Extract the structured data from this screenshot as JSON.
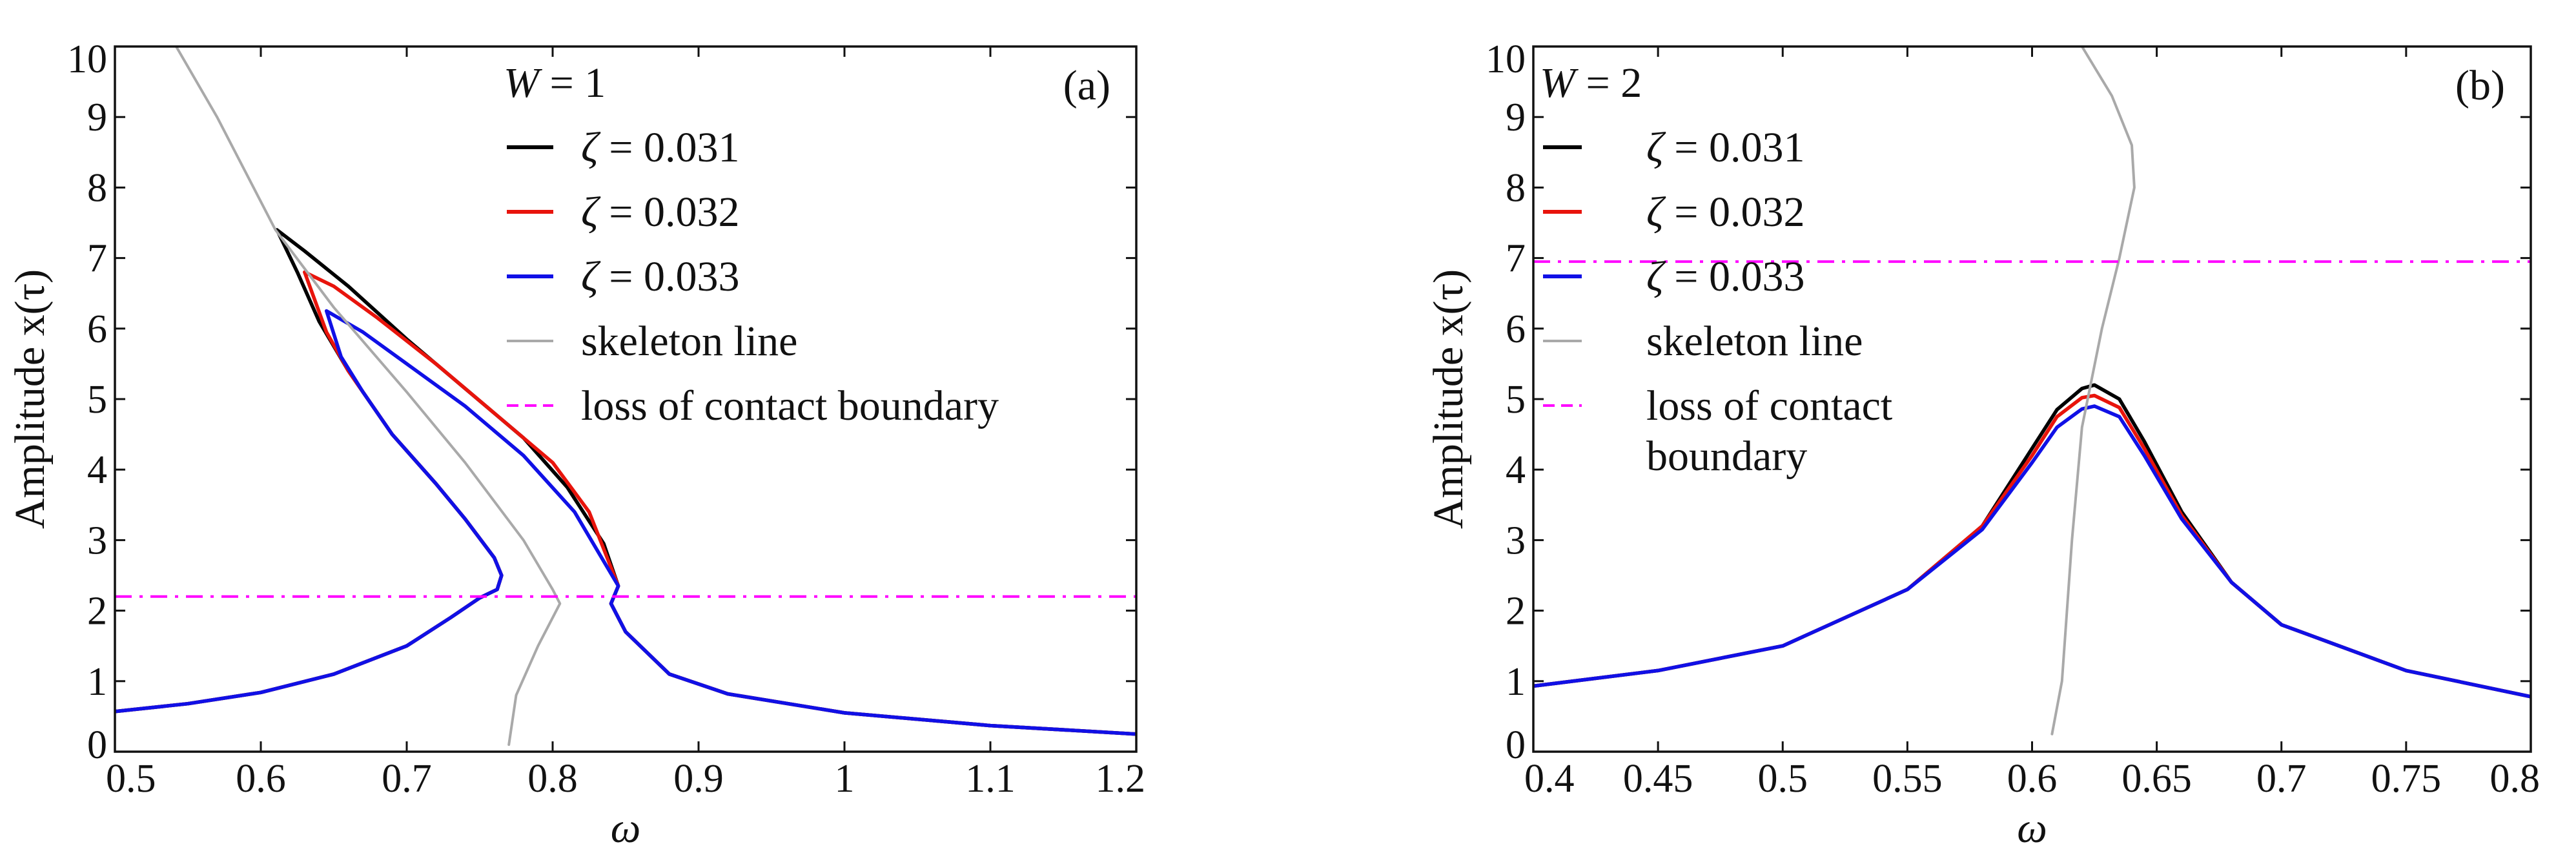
{
  "chart_data": [
    {
      "type": "line",
      "panel_label": "(a)",
      "xlabel": "ω",
      "ylabel": "Amplitude x(τ)",
      "xlim": [
        0.5,
        1.2
      ],
      "ylim": [
        0,
        10
      ],
      "x_ticks": [
        0.5,
        0.6,
        0.7,
        0.8,
        0.9,
        1,
        1.1,
        1.2
      ],
      "y_ticks": [
        0,
        1,
        2,
        3,
        4,
        5,
        6,
        7,
        8,
        9,
        10
      ],
      "legend_title": "W = 1",
      "legend_position": "top-right",
      "series": [
        {
          "name": "ζ = 0.031",
          "color": "#000000",
          "style": "solid",
          "points": [
            [
              0.5,
              0.57
            ],
            [
              0.55,
              0.68
            ],
            [
              0.6,
              0.84
            ],
            [
              0.65,
              1.1
            ],
            [
              0.7,
              1.5
            ],
            [
              0.73,
              1.9
            ],
            [
              0.75,
              2.18
            ],
            [
              0.762,
              2.3
            ],
            [
              0.765,
              2.5
            ],
            [
              0.76,
              2.75
            ],
            [
              0.74,
              3.3
            ],
            [
              0.72,
              3.8
            ],
            [
              0.69,
              4.5
            ],
            [
              0.66,
              5.4
            ],
            [
              0.64,
              6.1
            ],
            [
              0.625,
              6.8
            ],
            [
              0.611,
              7.4
            ],
            [
              0.63,
              7.1
            ],
            [
              0.66,
              6.6
            ],
            [
              0.7,
              5.85
            ],
            [
              0.74,
              5.15
            ],
            [
              0.78,
              4.45
            ],
            [
              0.81,
              3.75
            ],
            [
              0.835,
              2.95
            ],
            [
              0.845,
              2.35
            ],
            [
              0.84,
              2.1
            ],
            [
              0.85,
              1.7
            ],
            [
              0.88,
              1.1
            ],
            [
              0.92,
              0.82
            ],
            [
              1.0,
              0.55
            ],
            [
              1.1,
              0.37
            ],
            [
              1.2,
              0.25
            ]
          ]
        },
        {
          "name": "ζ = 0.032",
          "color": "#e8140c",
          "style": "solid",
          "points": [
            [
              0.5,
              0.57
            ],
            [
              0.55,
              0.68
            ],
            [
              0.6,
              0.84
            ],
            [
              0.65,
              1.1
            ],
            [
              0.7,
              1.5
            ],
            [
              0.73,
              1.9
            ],
            [
              0.75,
              2.18
            ],
            [
              0.762,
              2.3
            ],
            [
              0.765,
              2.5
            ],
            [
              0.76,
              2.75
            ],
            [
              0.74,
              3.3
            ],
            [
              0.72,
              3.8
            ],
            [
              0.69,
              4.5
            ],
            [
              0.66,
              5.4
            ],
            [
              0.645,
              5.95
            ],
            [
              0.63,
              6.8
            ],
            [
              0.65,
              6.6
            ],
            [
              0.68,
              6.15
            ],
            [
              0.72,
              5.5
            ],
            [
              0.76,
              4.8
            ],
            [
              0.8,
              4.1
            ],
            [
              0.825,
              3.4
            ],
            [
              0.845,
              2.35
            ],
            [
              0.84,
              2.1
            ],
            [
              0.85,
              1.7
            ],
            [
              0.88,
              1.1
            ],
            [
              0.92,
              0.82
            ],
            [
              1.0,
              0.55
            ],
            [
              1.1,
              0.37
            ],
            [
              1.2,
              0.25
            ]
          ]
        },
        {
          "name": "ζ = 0.033",
          "color": "#1010e6",
          "style": "solid",
          "points": [
            [
              0.5,
              0.57
            ],
            [
              0.55,
              0.68
            ],
            [
              0.6,
              0.84
            ],
            [
              0.65,
              1.1
            ],
            [
              0.7,
              1.5
            ],
            [
              0.73,
              1.9
            ],
            [
              0.75,
              2.18
            ],
            [
              0.762,
              2.3
            ],
            [
              0.765,
              2.5
            ],
            [
              0.76,
              2.75
            ],
            [
              0.74,
              3.3
            ],
            [
              0.72,
              3.8
            ],
            [
              0.69,
              4.5
            ],
            [
              0.67,
              5.1
            ],
            [
              0.655,
              5.6
            ],
            [
              0.645,
              6.25
            ],
            [
              0.67,
              5.95
            ],
            [
              0.7,
              5.5
            ],
            [
              0.74,
              4.9
            ],
            [
              0.78,
              4.2
            ],
            [
              0.815,
              3.4
            ],
            [
              0.845,
              2.35
            ],
            [
              0.84,
              2.1
            ],
            [
              0.85,
              1.7
            ],
            [
              0.88,
              1.1
            ],
            [
              0.92,
              0.82
            ],
            [
              1.0,
              0.55
            ],
            [
              1.1,
              0.37
            ],
            [
              1.2,
              0.25
            ]
          ]
        },
        {
          "name": "skeleton line",
          "color": "#a9a9a9",
          "style": "solid",
          "points": [
            [
              0.542,
              10
            ],
            [
              0.57,
              9.0
            ],
            [
              0.61,
              7.4
            ],
            [
              0.65,
              6.3
            ],
            [
              0.7,
              5.1
            ],
            [
              0.74,
              4.1
            ],
            [
              0.78,
              3.0
            ],
            [
              0.8,
              2.3
            ],
            [
              0.805,
              2.1
            ],
            [
              0.79,
              1.5
            ],
            [
              0.775,
              0.8
            ],
            [
              0.77,
              0.1
            ]
          ]
        },
        {
          "name": "loss of contact boundary",
          "color": "#ff00ff",
          "style": "dashdot",
          "points": [
            [
              0.5,
              2.2
            ],
            [
              1.2,
              2.2
            ]
          ]
        }
      ]
    },
    {
      "type": "line",
      "panel_label": "(b)",
      "xlabel": "ω",
      "ylabel": "Amplitude x(τ)",
      "xlim": [
        0.4,
        0.8
      ],
      "ylim": [
        0,
        10
      ],
      "x_ticks": [
        0.4,
        0.45,
        0.5,
        0.55,
        0.6,
        0.65,
        0.7,
        0.75,
        0.8
      ],
      "y_ticks": [
        0,
        1,
        2,
        3,
        4,
        5,
        6,
        7,
        8,
        9,
        10
      ],
      "legend_title": "W = 2",
      "legend_position": "top-left",
      "series": [
        {
          "name": "ζ = 0.031",
          "color": "#000000",
          "style": "solid",
          "points": [
            [
              0.4,
              0.93
            ],
            [
              0.45,
              1.15
            ],
            [
              0.5,
              1.5
            ],
            [
              0.55,
              2.3
            ],
            [
              0.58,
              3.2
            ],
            [
              0.6,
              4.3
            ],
            [
              0.61,
              4.85
            ],
            [
              0.62,
              5.15
            ],
            [
              0.625,
              5.2
            ],
            [
              0.635,
              5.0
            ],
            [
              0.645,
              4.4
            ],
            [
              0.66,
              3.4
            ],
            [
              0.68,
              2.4
            ],
            [
              0.7,
              1.8
            ],
            [
              0.75,
              1.15
            ],
            [
              0.8,
              0.78
            ]
          ]
        },
        {
          "name": "ζ = 0.032",
          "color": "#e8140c",
          "style": "solid",
          "points": [
            [
              0.4,
              0.93
            ],
            [
              0.45,
              1.15
            ],
            [
              0.5,
              1.5
            ],
            [
              0.55,
              2.3
            ],
            [
              0.58,
              3.2
            ],
            [
              0.6,
              4.2
            ],
            [
              0.61,
              4.75
            ],
            [
              0.62,
              5.02
            ],
            [
              0.625,
              5.05
            ],
            [
              0.635,
              4.88
            ],
            [
              0.645,
              4.3
            ],
            [
              0.66,
              3.35
            ],
            [
              0.68,
              2.4
            ],
            [
              0.7,
              1.8
            ],
            [
              0.75,
              1.15
            ],
            [
              0.8,
              0.78
            ]
          ]
        },
        {
          "name": "ζ = 0.033",
          "color": "#1010e6",
          "style": "solid",
          "points": [
            [
              0.4,
              0.93
            ],
            [
              0.45,
              1.15
            ],
            [
              0.5,
              1.5
            ],
            [
              0.55,
              2.3
            ],
            [
              0.58,
              3.15
            ],
            [
              0.6,
              4.1
            ],
            [
              0.61,
              4.6
            ],
            [
              0.62,
              4.86
            ],
            [
              0.625,
              4.9
            ],
            [
              0.635,
              4.75
            ],
            [
              0.645,
              4.2
            ],
            [
              0.66,
              3.3
            ],
            [
              0.68,
              2.4
            ],
            [
              0.7,
              1.8
            ],
            [
              0.75,
              1.15
            ],
            [
              0.8,
              0.78
            ]
          ]
        },
        {
          "name": "skeleton line",
          "color": "#a9a9a9",
          "style": "solid",
          "points": [
            [
              0.608,
              0.25
            ],
            [
              0.612,
              1.0
            ],
            [
              0.616,
              3.0
            ],
            [
              0.62,
              4.6
            ],
            [
              0.628,
              6.0
            ],
            [
              0.635,
              7.0
            ],
            [
              0.641,
              8.0
            ],
            [
              0.64,
              8.6
            ],
            [
              0.632,
              9.3
            ],
            [
              0.62,
              10
            ]
          ]
        },
        {
          "name": "loss of contact boundary",
          "color": "#ff00ff",
          "style": "dashdot",
          "points": [
            [
              0.4,
              6.95
            ],
            [
              0.8,
              6.95
            ]
          ]
        }
      ]
    }
  ]
}
